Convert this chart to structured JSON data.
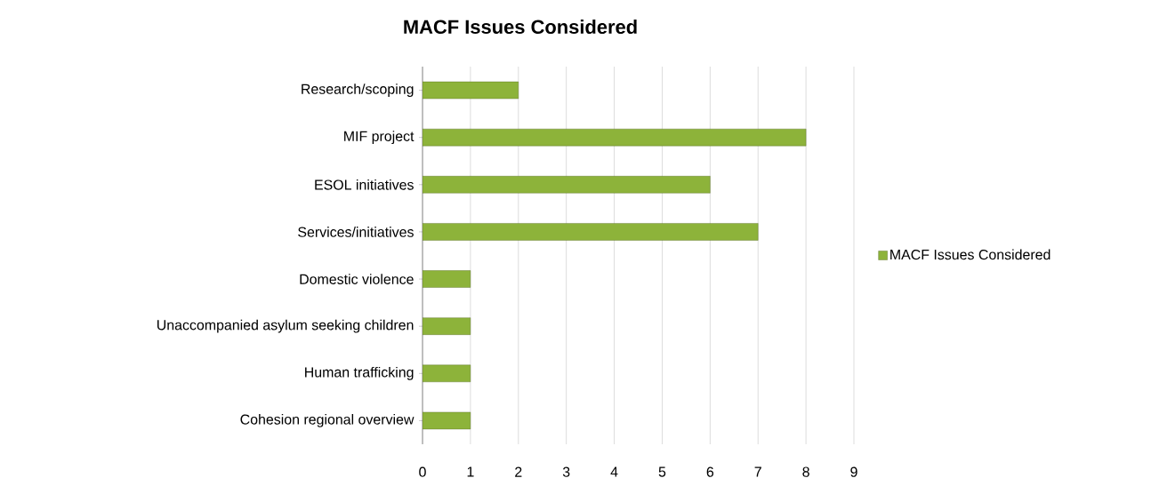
{
  "chart_data": {
    "type": "bar",
    "orientation": "horizontal",
    "title": "MACF Issues Considered",
    "categories": [
      "Research/scoping",
      "MIF project",
      "ESOL initiatives",
      "Services/initiatives",
      "Domestic violence",
      "Unaccompanied asylum seeking children",
      "Human trafficking",
      "Cohesion regional overview"
    ],
    "series": [
      {
        "name": "MACF Issues Considered",
        "color": "#8db33a",
        "values": [
          2,
          8,
          6,
          7,
          1,
          1,
          1,
          1
        ]
      }
    ],
    "xlim": [
      0,
      9
    ],
    "xticks": [
      0,
      1,
      2,
      3,
      4,
      5,
      6,
      7,
      8,
      9
    ],
    "grid": "x",
    "legend": "right"
  }
}
